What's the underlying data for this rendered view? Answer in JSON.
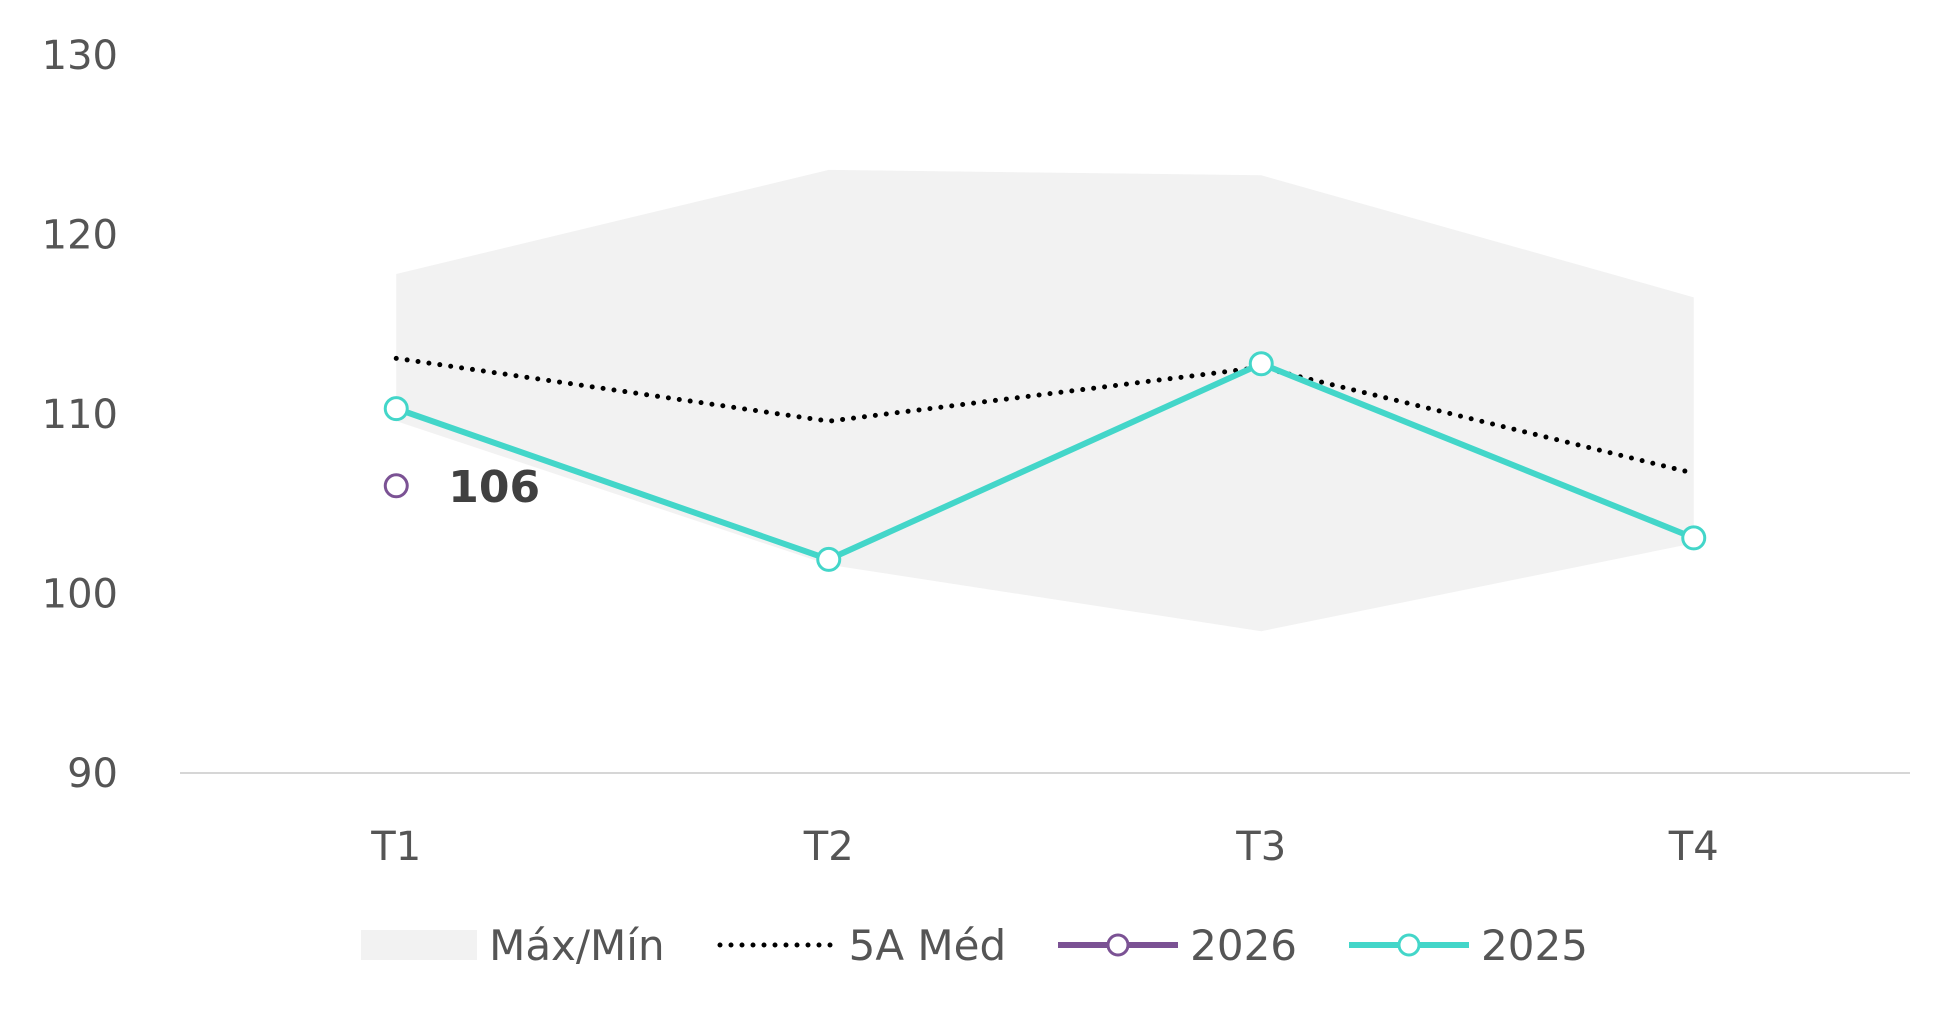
{
  "chart_data": {
    "type": "line",
    "categories": [
      "T1",
      "T2",
      "T3",
      "T4"
    ],
    "ylim": [
      90,
      130
    ],
    "yticks": [
      90,
      100,
      110,
      120,
      130
    ],
    "grid": false,
    "legend_position": "bottom",
    "band": {
      "name": "Máx/Mín",
      "max": [
        117.8,
        123.6,
        123.3,
        116.5
      ],
      "min": [
        109.6,
        101.6,
        97.9,
        102.8
      ],
      "color": "#f2f2f2"
    },
    "series": [
      {
        "name": "5A Méd",
        "values": [
          113.1,
          109.6,
          112.6,
          106.7
        ],
        "color": "#000000",
        "style": "dotted",
        "marker": "none"
      },
      {
        "name": "2026",
        "values": [
          106,
          null,
          null,
          null
        ],
        "color": "#7b5294",
        "style": "solid",
        "marker": "circle"
      },
      {
        "name": "2025",
        "values": [
          110.3,
          101.9,
          112.8,
          103.1
        ],
        "color": "#43d6c9",
        "style": "solid",
        "marker": "circle"
      }
    ],
    "annotations": [
      {
        "series": "2026",
        "category": "T1",
        "text": "106"
      }
    ]
  },
  "legend": {
    "items": [
      {
        "name": "Máx/Mín",
        "icon": "area-swatch-icon",
        "kind": "area"
      },
      {
        "name": "5A Méd",
        "icon": "dotted-line-icon",
        "kind": "dotted"
      },
      {
        "name": "2026",
        "icon": "line-marker-icon",
        "kind": "line"
      },
      {
        "name": "2025",
        "icon": "line-marker-icon",
        "kind": "line"
      }
    ]
  }
}
